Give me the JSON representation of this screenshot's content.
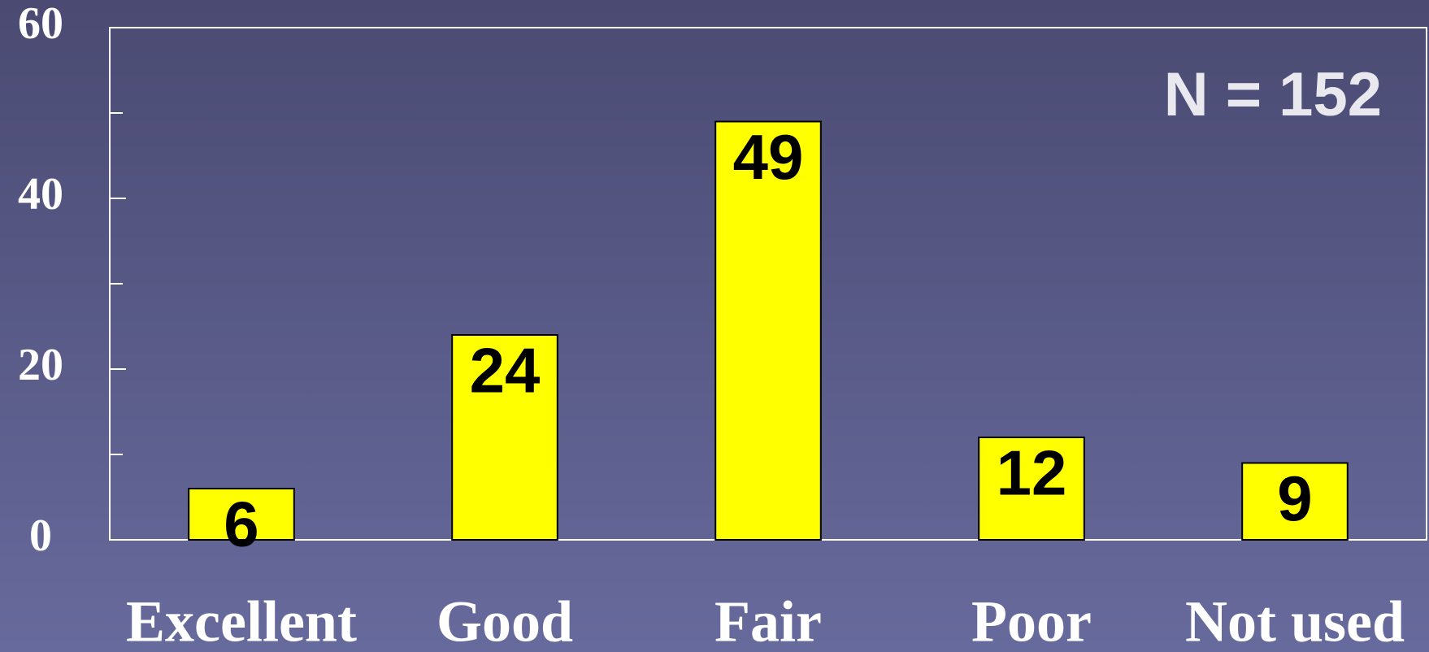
{
  "chart_data": {
    "type": "bar",
    "categories": [
      "Excellent",
      "Good",
      "Fair",
      "Poor",
      "Not used"
    ],
    "values": [
      6,
      24,
      49,
      12,
      9
    ],
    "color": "#ffff00",
    "ylim": [
      0,
      60
    ],
    "yticks": [
      0,
      20,
      40,
      60
    ],
    "minor_yticks": [
      10,
      30,
      50
    ],
    "annotation": "N = 152"
  }
}
